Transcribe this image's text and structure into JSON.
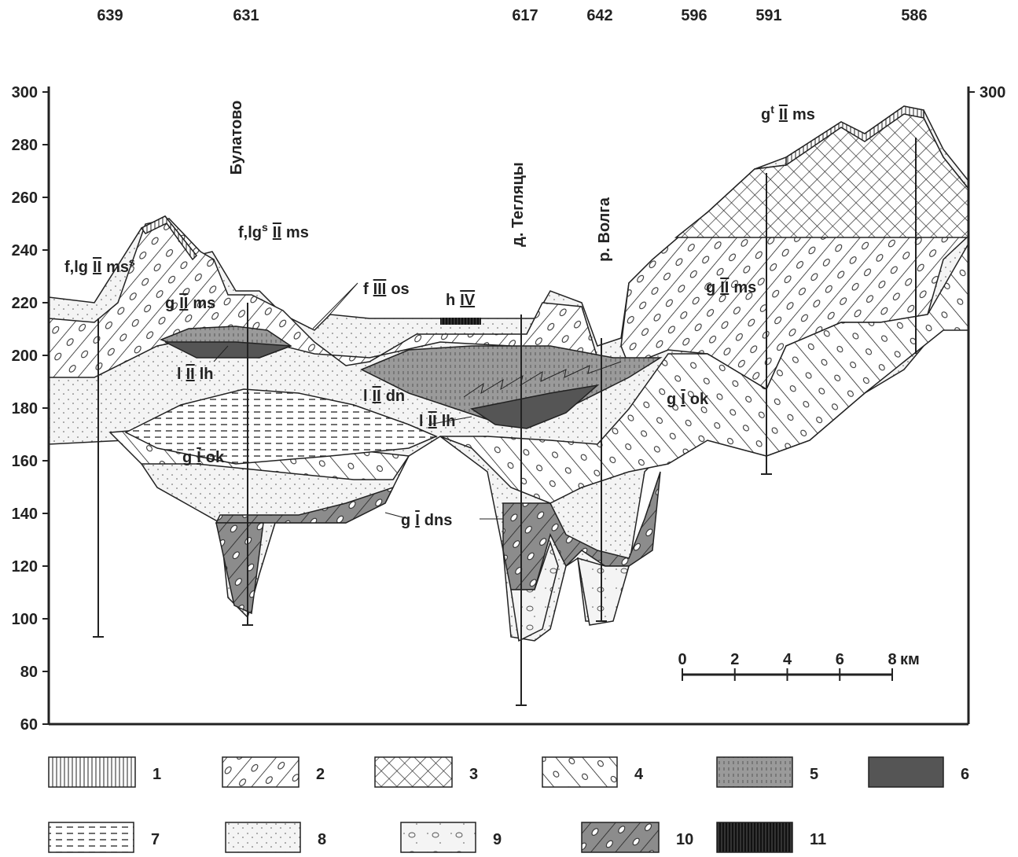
{
  "boreholes": [
    "639",
    "631",
    "617",
    "642",
    "596",
    "591",
    "586"
  ],
  "axis": {
    "left_ticks": [
      300,
      280,
      260,
      240,
      220,
      200,
      180,
      160,
      140,
      120,
      100,
      80,
      60
    ],
    "right_ticks": [
      300
    ]
  },
  "places": [
    "Булатово",
    "д. Тегляцы",
    "р. Волга"
  ],
  "labels": [
    {
      "pre": "f,lg",
      "index": "II",
      "post": "ms",
      "post_sup": "s"
    },
    {
      "pre": "f,lg",
      "sup": "s",
      "index": "II",
      "post": "ms"
    },
    {
      "pre": "g",
      "index": "II",
      "post": "ms"
    },
    {
      "pre": "f",
      "index": "III",
      "post": "os"
    },
    {
      "pre": "h",
      "index": "IV"
    },
    {
      "pre": "l",
      "index": "II",
      "post": "lh"
    },
    {
      "pre": "l",
      "index": "II",
      "post": "dn"
    },
    {
      "pre": "l",
      "index": "II",
      "post": "lh"
    },
    {
      "pre": "g",
      "index": "I",
      "post": "ok"
    },
    {
      "pre": "g",
      "index": "I",
      "post": "dns"
    },
    {
      "pre": "g",
      "index": "I",
      "post": "ok"
    },
    {
      "pre": "g",
      "index": "II",
      "post": "ms"
    },
    {
      "pre": "g",
      "sup": "t",
      "index": "II",
      "post": "ms"
    }
  ],
  "scale": {
    "ticks": [
      0,
      2,
      4,
      6,
      8
    ],
    "unit": "км"
  },
  "legend": [
    "1",
    "2",
    "3",
    "4",
    "5",
    "6",
    "7",
    "8",
    "9",
    "10",
    "11"
  ]
}
